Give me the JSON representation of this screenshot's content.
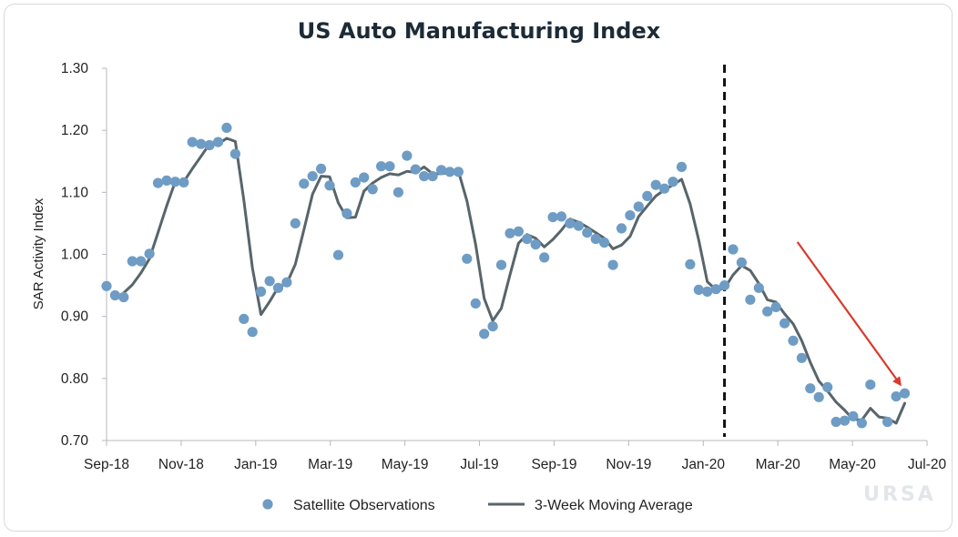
{
  "chart_data": {
    "type": "scatter",
    "title": "US Auto Manufacturing Index",
    "ylabel": "SAR Activity Index",
    "xlabel": "",
    "ylim": [
      0.7,
      1.3
    ],
    "yticks": [
      "0.70",
      "0.80",
      "0.90",
      "1.00",
      "1.10",
      "1.20",
      "1.30"
    ],
    "xticks": [
      "Sep-18",
      "Nov-18",
      "Jan-19",
      "Mar-19",
      "May-19",
      "Jul-19",
      "Sep-19",
      "Nov-19",
      "Jan-20",
      "Mar-20",
      "May-20",
      "Jul-20"
    ],
    "x_unit": "week index (0 = Sep-18, ~8.7 weeks per month label)",
    "series": [
      {
        "name": "Satellite Observations",
        "kind": "points",
        "color": "#6e9cc4",
        "values": [
          0.949,
          0.934,
          0.931,
          0.989,
          0.989,
          1.001,
          1.115,
          1.119,
          1.117,
          1.116,
          1.181,
          1.178,
          1.176,
          1.181,
          1.204,
          1.162,
          0.896,
          0.875,
          0.94,
          0.957,
          0.946,
          0.955,
          1.05,
          1.114,
          1.126,
          1.138,
          1.111,
          0.999,
          1.066,
          1.116,
          1.124,
          1.105,
          1.142,
          1.142,
          1.1,
          1.159,
          1.137,
          1.126,
          1.126,
          1.136,
          1.133,
          1.133,
          0.993,
          0.921,
          0.872,
          0.884,
          0.983,
          1.034,
          1.037,
          1.025,
          1.016,
          0.995,
          1.06,
          1.061,
          1.05,
          1.046,
          1.035,
          1.025,
          1.019,
          0.983,
          1.042,
          1.063,
          1.077,
          1.094,
          1.112,
          1.106,
          1.117,
          1.141,
          0.984,
          0.943,
          0.94,
          0.944,
          0.95,
          1.008,
          0.987,
          0.927,
          0.946,
          0.908,
          0.915,
          0.889,
          0.861,
          0.833,
          0.784,
          0.77,
          0.786,
          0.73,
          0.732,
          0.739,
          0.728,
          0.79,
          null,
          0.73,
          0.771,
          0.776
        ]
      },
      {
        "name": "3-Week Moving Average",
        "kind": "line",
        "color": "#58656a",
        "values": [
          null,
          null,
          0.938,
          0.951,
          0.97,
          0.993,
          1.035,
          1.078,
          1.117,
          1.117,
          1.138,
          1.158,
          1.178,
          1.178,
          1.187,
          1.182,
          1.087,
          0.978,
          0.903,
          0.924,
          0.947,
          0.953,
          0.984,
          1.04,
          1.097,
          1.126,
          1.125,
          1.083,
          1.059,
          1.06,
          1.102,
          1.115,
          1.124,
          1.13,
          1.128,
          1.134,
          1.132,
          1.141,
          1.13,
          1.13,
          1.132,
          1.134,
          1.086,
          1.016,
          0.929,
          0.893,
          0.913,
          0.967,
          1.018,
          1.032,
          1.026,
          1.012,
          1.024,
          1.039,
          1.057,
          1.052,
          1.044,
          1.035,
          1.026,
          1.009,
          1.015,
          1.029,
          1.061,
          1.078,
          1.094,
          1.104,
          1.112,
          1.121,
          1.081,
          1.023,
          0.956,
          0.943,
          0.945,
          0.967,
          0.982,
          0.974,
          0.953,
          0.927,
          0.923,
          0.904,
          0.888,
          0.861,
          0.826,
          0.796,
          0.78,
          0.762,
          0.749,
          0.734,
          0.733,
          0.752,
          0.738,
          0.736,
          0.728,
          0.76
        ]
      }
    ],
    "annotations": [
      {
        "type": "vline",
        "x_week": 72,
        "style": "dashed",
        "color": "#111111",
        "label": ""
      },
      {
        "type": "arrow",
        "from": [
          80.5,
          1.02
        ],
        "to": [
          92.5,
          0.79
        ],
        "color": "#d73a2c",
        "label": ""
      }
    ],
    "legend": {
      "position": "bottom-center",
      "entries": [
        "Satellite Observations",
        "3-Week Moving Average"
      ]
    },
    "grid": {
      "x": false,
      "y": false
    }
  },
  "watermark": "URSA"
}
